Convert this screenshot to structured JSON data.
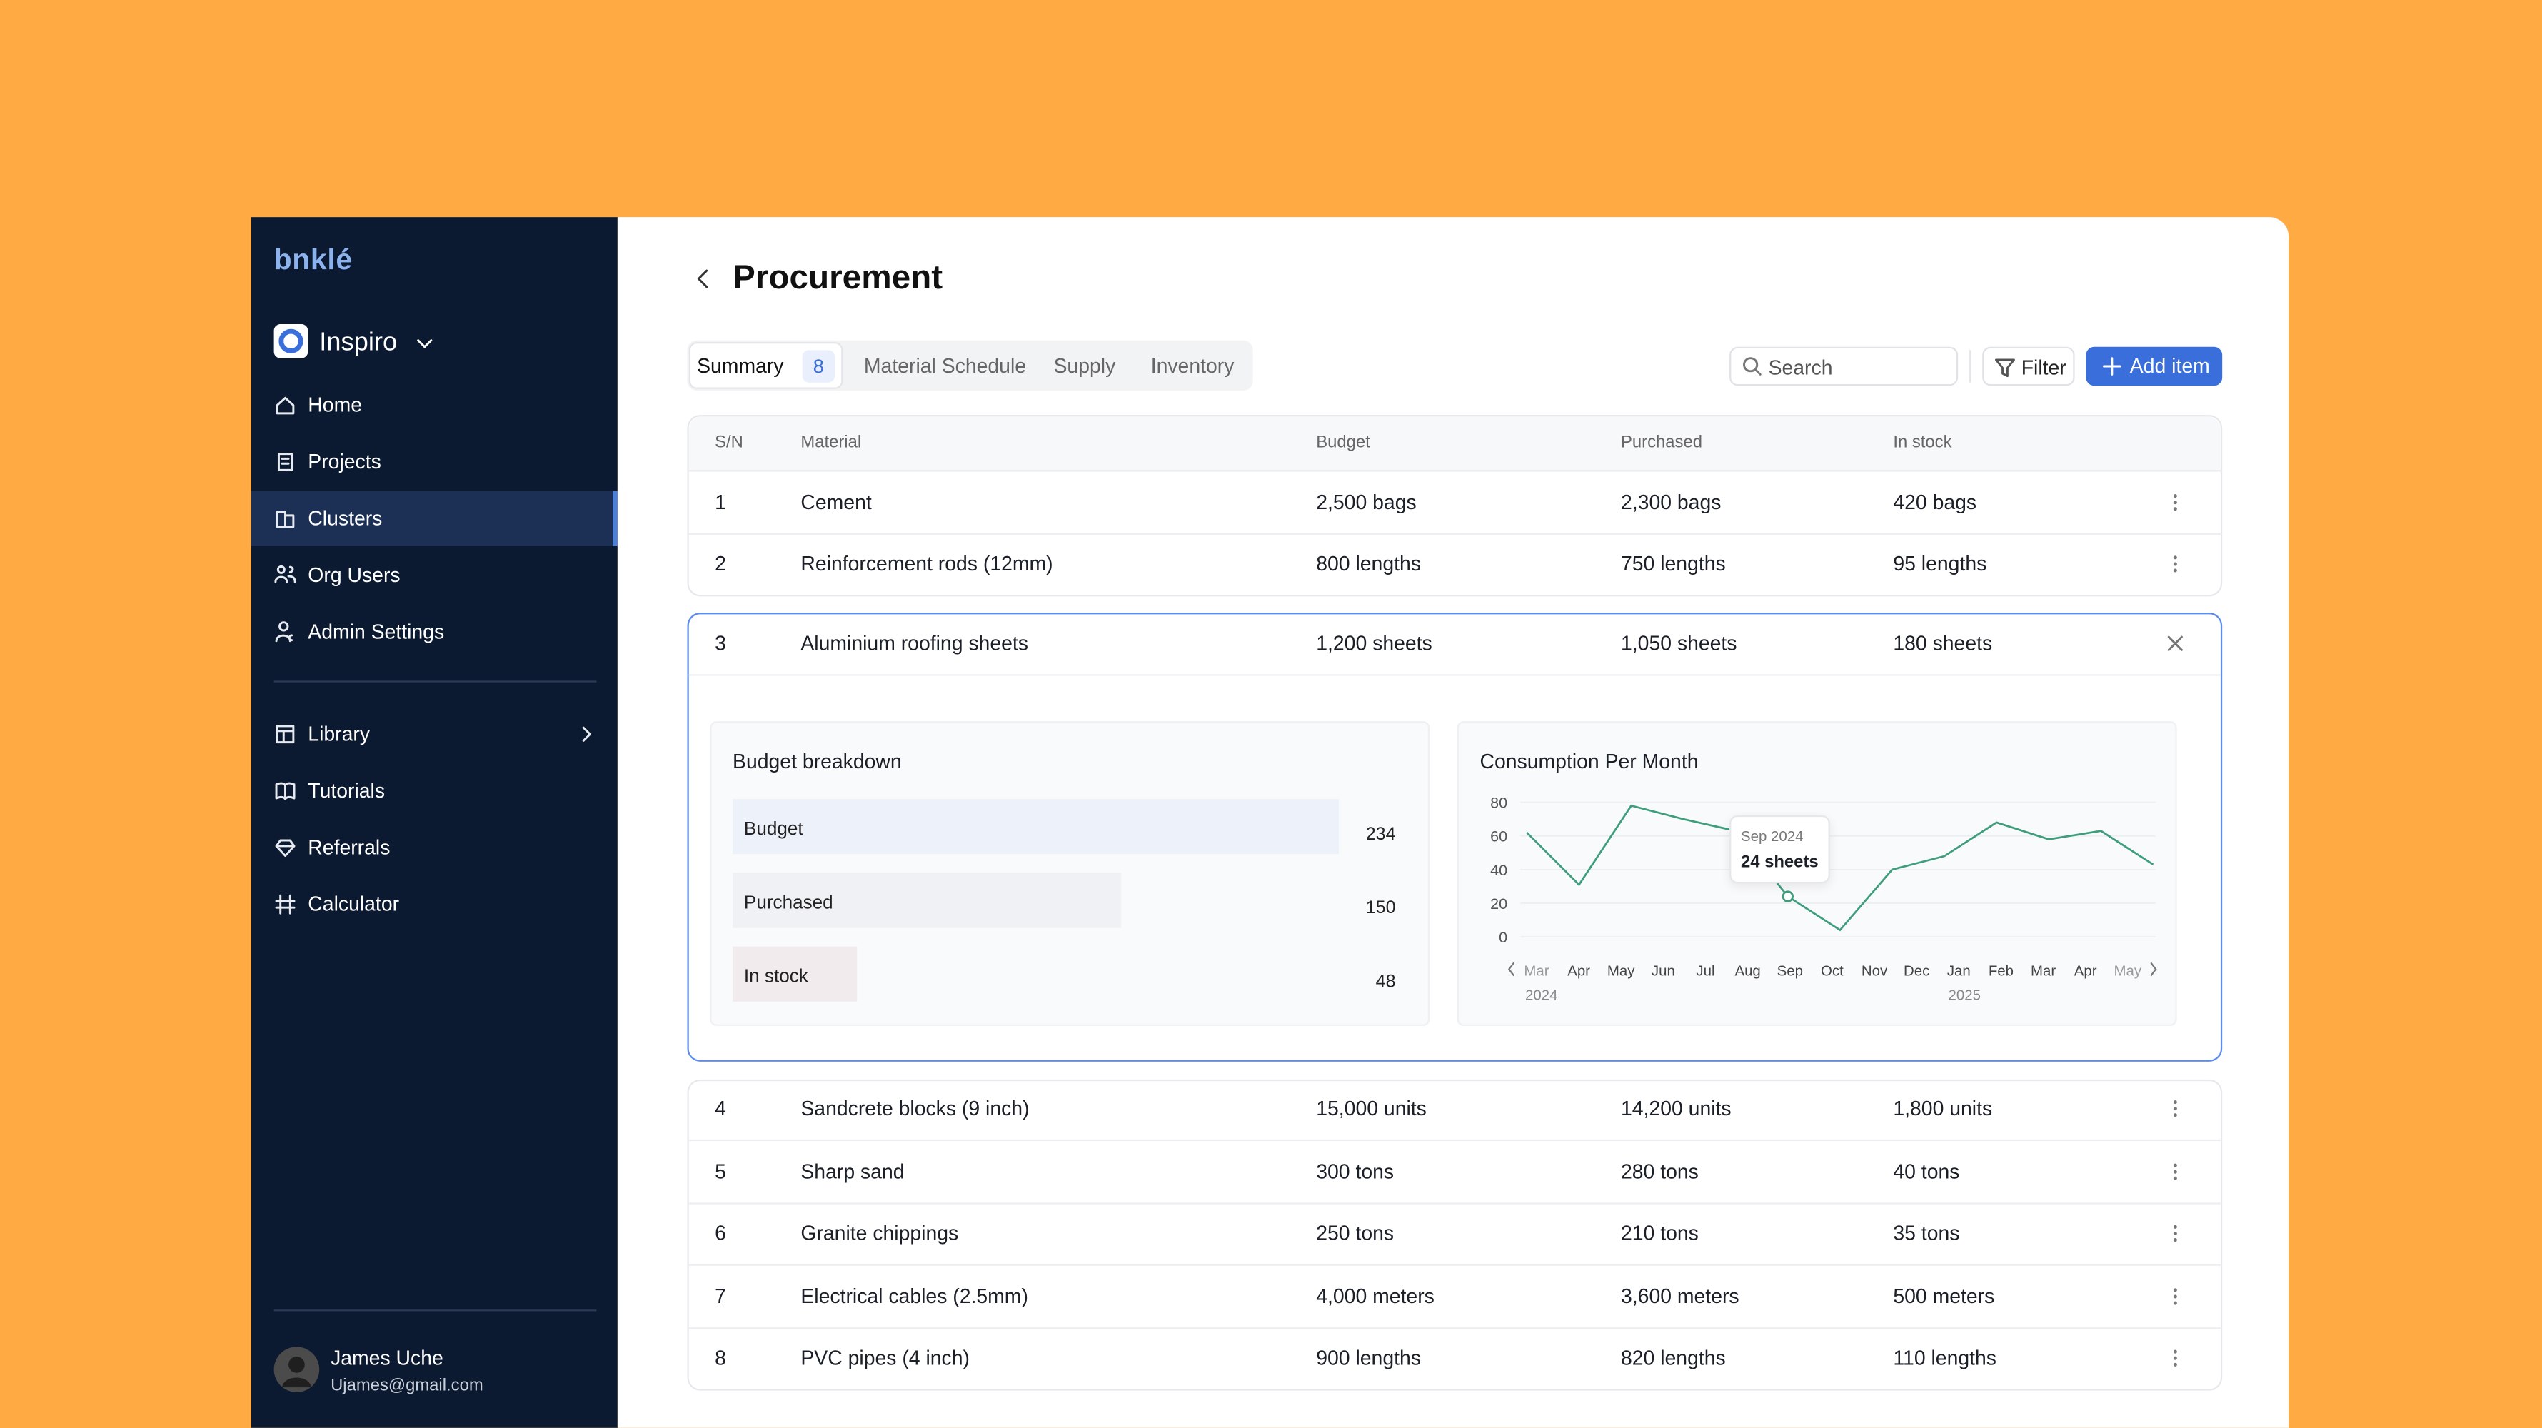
{
  "sidebar": {
    "logo": "bnklé",
    "workspace": "Inspiro",
    "nav": [
      "Home",
      "Projects",
      "Clusters",
      "Org Users",
      "Admin Settings"
    ],
    "nav2": [
      "Library",
      "Tutorials",
      "Referrals",
      "Calculator"
    ],
    "user": {
      "name": "James Uche",
      "email": "Ujames@gmail.com"
    }
  },
  "header": {
    "title": "Procurement"
  },
  "tabs": [
    {
      "label": "Summary",
      "badge": "8"
    },
    {
      "label": "Material Schedule"
    },
    {
      "label": "Supply"
    },
    {
      "label": "Inventory"
    }
  ],
  "toolbar": {
    "search": "Search",
    "filter": "Filter",
    "add": "Add item"
  },
  "table": {
    "columns": [
      "S/N",
      "Material",
      "Budget",
      "Purchased",
      "In stock"
    ],
    "rows": [
      [
        "1",
        "Cement",
        "2,500 bags",
        "2,300 bags",
        "420 bags"
      ],
      [
        "2",
        "Reinforcement rods (12mm)",
        "800 lengths",
        "750 lengths",
        "95 lengths"
      ],
      [
        "3",
        "Aluminium roofing sheets",
        "1,200 sheets",
        "1,050 sheets",
        "180 sheets"
      ],
      [
        "4",
        "Sandcrete blocks (9 inch)",
        "15,000 units",
        "14,200 units",
        "1,800 units"
      ],
      [
        "5",
        "Sharp sand",
        "300 tons",
        "280 tons",
        "40 tons"
      ],
      [
        "6",
        "Granite chippings",
        "250 tons",
        "210 tons",
        "35 tons"
      ],
      [
        "7",
        "Electrical cables (2.5mm)",
        "4,000 meters",
        "3,600 meters",
        "500 meters"
      ],
      [
        "8",
        "PVC pipes (4 inch)",
        "900 lengths",
        "820 lengths",
        "110 lengths"
      ]
    ]
  },
  "budget_chart": {
    "type": "bar",
    "title": "Budget breakdown",
    "categories": [
      "Budget",
      "Purchased",
      "In stock"
    ],
    "values": [
      234,
      150,
      48
    ],
    "colors": [
      "#EDF1F9",
      "#F0F1F4",
      "#F1EBEE"
    ]
  },
  "consumption_chart": {
    "type": "line",
    "title": "Consumption Per Month",
    "x_labels": [
      "Mar",
      "Apr",
      "May",
      "Jun",
      "Jul",
      "Aug",
      "Sep",
      "Oct",
      "Nov",
      "Dec",
      "Jan",
      "Feb",
      "Mar",
      "Apr",
      "May"
    ],
    "year_labels": [
      "2024",
      "2025"
    ],
    "values": [
      62,
      31,
      78,
      70,
      63,
      24,
      4,
      40,
      48,
      68,
      58,
      63,
      43
    ],
    "color": "#3E9E7B",
    "ylim": [
      0,
      80
    ],
    "yticks": [
      0,
      20,
      40,
      60,
      80
    ],
    "grid": true,
    "tooltip": {
      "date": "Sep 2024",
      "value": "24 sheets"
    }
  }
}
